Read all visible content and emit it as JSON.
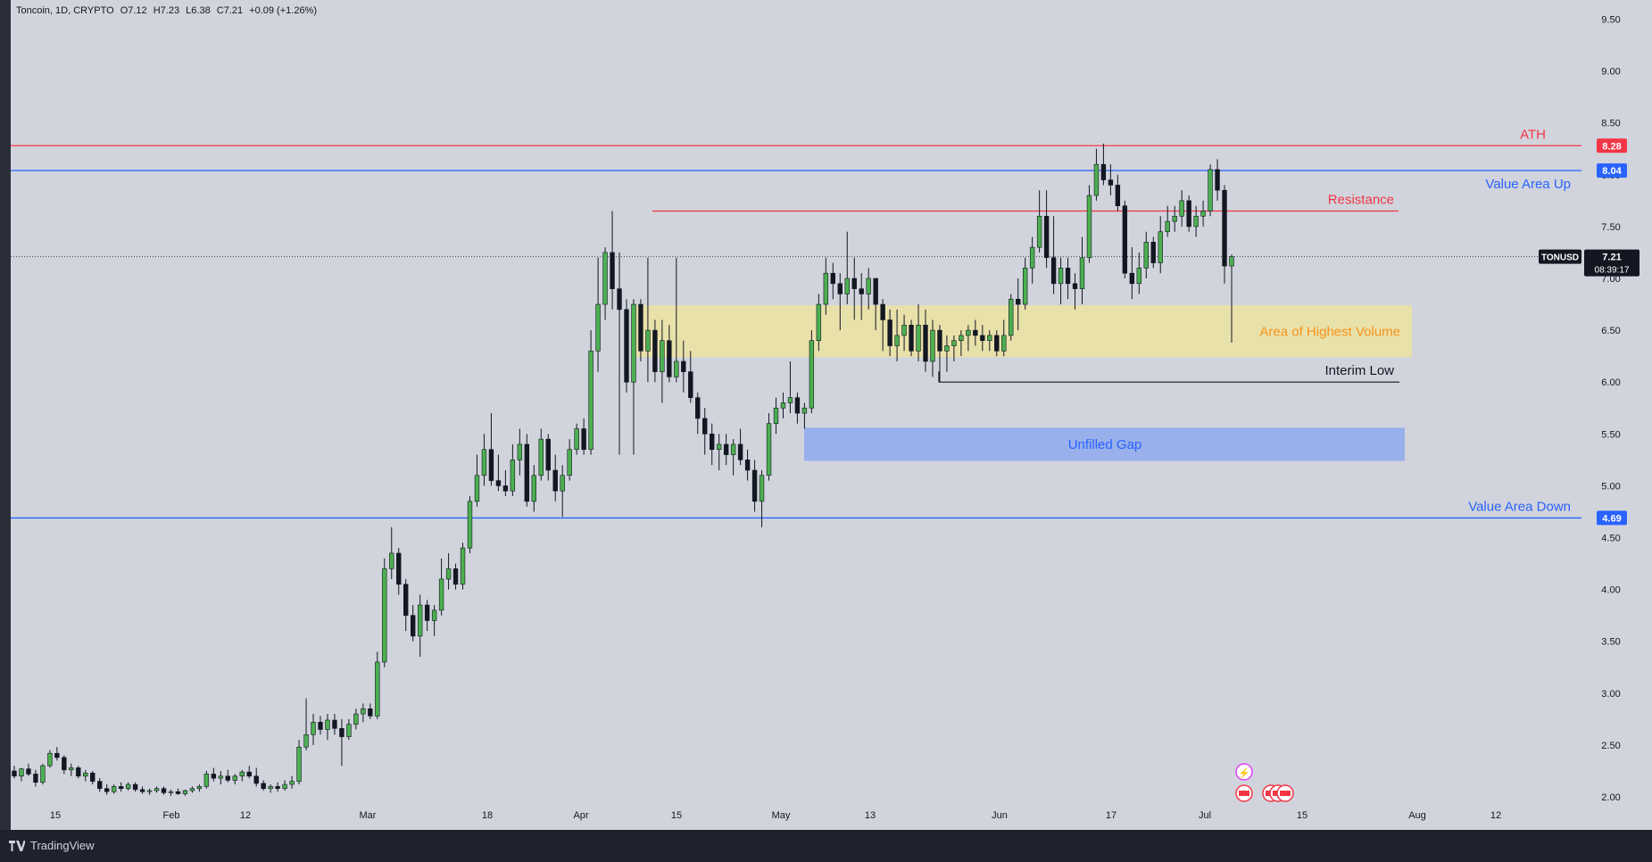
{
  "legend": {
    "symbol": "Toncoin, 1D, CRYPTO",
    "open": "O7.12",
    "high": "H7.23",
    "low": "L6.38",
    "close": "C7.21",
    "change": "+0.09 (+1.26%)"
  },
  "footer": {
    "brand": "TradingView"
  },
  "chart_data": {
    "type": "candlestick",
    "title": "Toncoin, 1D, CRYPTO",
    "xlabel": "",
    "ylabel": "",
    "ylim": [
      1.8,
      9.6
    ],
    "y_ticks": [
      "2.00",
      "2.50",
      "3.00",
      "3.50",
      "4.00",
      "4.50",
      "5.00",
      "5.50",
      "6.00",
      "6.50",
      "7.00",
      "7.50",
      "8.00",
      "8.50",
      "9.00",
      "9.50"
    ],
    "x_ticks": [
      "15",
      "Feb",
      "12",
      "Mar",
      "18",
      "Apr",
      "15",
      "May",
      "13",
      "Jun",
      "17",
      "Jul",
      "15",
      "Aug",
      "12"
    ],
    "ticker": "TONUSD",
    "last_price": "7.21",
    "countdown": "08:39:17",
    "levels": [
      {
        "label": "ATH",
        "value": 8.28,
        "tag": "8.28",
        "color": "#f23645"
      },
      {
        "label": "Value Area Up",
        "value": 8.04,
        "tag": "8.04",
        "color": "#2962ff"
      },
      {
        "label": "Value Area Down",
        "value": 4.69,
        "tag": "4.69",
        "color": "#2962ff"
      }
    ],
    "annotations": [
      {
        "label": "Resistance",
        "value": 7.65
      },
      {
        "label": "Area of Highest Volume",
        "from": 6.24,
        "to": 6.74
      },
      {
        "label": "Interim Low",
        "value": 6.0
      },
      {
        "label": "Unfilled Gap",
        "from": 5.24,
        "to": 5.56
      }
    ],
    "candles": [
      [
        2.25,
        2.3,
        2.18,
        2.2
      ],
      [
        2.2,
        2.28,
        2.15,
        2.27
      ],
      [
        2.27,
        2.32,
        2.2,
        2.22
      ],
      [
        2.22,
        2.26,
        2.1,
        2.14
      ],
      [
        2.14,
        2.32,
        2.12,
        2.3
      ],
      [
        2.3,
        2.45,
        2.28,
        2.42
      ],
      [
        2.42,
        2.48,
        2.35,
        2.38
      ],
      [
        2.38,
        2.4,
        2.22,
        2.26
      ],
      [
        2.26,
        2.32,
        2.2,
        2.28
      ],
      [
        2.28,
        2.3,
        2.18,
        2.2
      ],
      [
        2.2,
        2.26,
        2.15,
        2.23
      ],
      [
        2.23,
        2.25,
        2.12,
        2.15
      ],
      [
        2.15,
        2.18,
        2.05,
        2.08
      ],
      [
        2.08,
        2.12,
        2.02,
        2.05
      ],
      [
        2.05,
        2.12,
        2.03,
        2.1
      ],
      [
        2.1,
        2.14,
        2.05,
        2.08
      ],
      [
        2.08,
        2.14,
        2.06,
        2.12
      ],
      [
        2.12,
        2.14,
        2.05,
        2.07
      ],
      [
        2.07,
        2.1,
        2.03,
        2.05
      ],
      [
        2.05,
        2.08,
        2.02,
        2.06
      ],
      [
        2.06,
        2.1,
        2.04,
        2.08
      ],
      [
        2.08,
        2.1,
        2.02,
        2.04
      ],
      [
        2.04,
        2.07,
        2.01,
        2.05
      ],
      [
        2.05,
        2.08,
        2.02,
        2.03
      ],
      [
        2.03,
        2.07,
        2.01,
        2.06
      ],
      [
        2.06,
        2.1,
        2.04,
        2.08
      ],
      [
        2.08,
        2.12,
        2.05,
        2.1
      ],
      [
        2.1,
        2.25,
        2.08,
        2.22
      ],
      [
        2.22,
        2.28,
        2.15,
        2.18
      ],
      [
        2.18,
        2.25,
        2.12,
        2.2
      ],
      [
        2.2,
        2.26,
        2.14,
        2.16
      ],
      [
        2.16,
        2.22,
        2.12,
        2.2
      ],
      [
        2.2,
        2.26,
        2.15,
        2.24
      ],
      [
        2.24,
        2.3,
        2.18,
        2.2
      ],
      [
        2.2,
        2.28,
        2.1,
        2.13
      ],
      [
        2.13,
        2.16,
        2.06,
        2.08
      ],
      [
        2.08,
        2.12,
        2.04,
        2.1
      ],
      [
        2.1,
        2.14,
        2.05,
        2.08
      ],
      [
        2.08,
        2.16,
        2.06,
        2.12
      ],
      [
        2.12,
        2.2,
        2.08,
        2.15
      ],
      [
        2.15,
        2.55,
        2.12,
        2.48
      ],
      [
        2.48,
        2.95,
        2.45,
        2.6
      ],
      [
        2.6,
        2.8,
        2.5,
        2.72
      ],
      [
        2.72,
        2.78,
        2.6,
        2.65
      ],
      [
        2.65,
        2.8,
        2.55,
        2.74
      ],
      [
        2.74,
        2.8,
        2.6,
        2.66
      ],
      [
        2.66,
        2.75,
        2.3,
        2.58
      ],
      [
        2.58,
        2.75,
        2.55,
        2.7
      ],
      [
        2.7,
        2.85,
        2.65,
        2.8
      ],
      [
        2.8,
        2.9,
        2.72,
        2.85
      ],
      [
        2.85,
        2.9,
        2.75,
        2.78
      ],
      [
        2.78,
        3.4,
        2.75,
        3.3
      ],
      [
        3.3,
        4.3,
        3.25,
        4.2
      ],
      [
        4.2,
        4.6,
        4.1,
        4.35
      ],
      [
        4.35,
        4.4,
        3.95,
        4.05
      ],
      [
        4.05,
        4.1,
        3.6,
        3.75
      ],
      [
        3.75,
        3.85,
        3.5,
        3.55
      ],
      [
        3.55,
        3.95,
        3.35,
        3.85
      ],
      [
        3.85,
        3.9,
        3.6,
        3.7
      ],
      [
        3.7,
        3.85,
        3.55,
        3.8
      ],
      [
        3.8,
        4.3,
        3.75,
        4.1
      ],
      [
        4.1,
        4.35,
        4.0,
        4.2
      ],
      [
        4.2,
        4.25,
        4.0,
        4.05
      ],
      [
        4.05,
        4.45,
        4.0,
        4.4
      ],
      [
        4.4,
        4.9,
        4.35,
        4.85
      ],
      [
        4.85,
        5.3,
        4.8,
        5.1
      ],
      [
        5.1,
        5.5,
        5.0,
        5.35
      ],
      [
        5.35,
        5.7,
        5.0,
        5.05
      ],
      [
        5.05,
        5.3,
        4.95,
        5.0
      ],
      [
        5.0,
        5.15,
        4.9,
        4.95
      ],
      [
        4.95,
        5.4,
        4.9,
        5.25
      ],
      [
        5.25,
        5.55,
        5.1,
        5.4
      ],
      [
        5.4,
        5.5,
        4.8,
        4.85
      ],
      [
        4.85,
        5.2,
        4.75,
        5.1
      ],
      [
        5.1,
        5.55,
        5.05,
        5.45
      ],
      [
        5.45,
        5.5,
        5.05,
        5.15
      ],
      [
        5.15,
        5.3,
        4.85,
        4.95
      ],
      [
        4.95,
        5.2,
        4.7,
        5.1
      ],
      [
        5.1,
        5.45,
        5.05,
        5.35
      ],
      [
        5.35,
        5.6,
        5.3,
        5.55
      ],
      [
        5.55,
        5.65,
        5.3,
        5.35
      ],
      [
        5.35,
        6.5,
        5.3,
        6.3
      ],
      [
        6.3,
        7.2,
        6.1,
        6.75
      ],
      [
        6.75,
        7.3,
        6.6,
        7.25
      ],
      [
        7.25,
        7.65,
        6.7,
        6.9
      ],
      [
        6.9,
        7.25,
        5.3,
        6.7
      ],
      [
        6.7,
        6.8,
        5.9,
        6.0
      ],
      [
        6.0,
        6.8,
        5.3,
        6.75
      ],
      [
        6.75,
        6.8,
        6.2,
        6.3
      ],
      [
        6.3,
        7.2,
        6.0,
        6.5
      ],
      [
        6.5,
        6.6,
        6.0,
        6.1
      ],
      [
        6.1,
        6.6,
        5.8,
        6.4
      ],
      [
        6.4,
        6.55,
        6.0,
        6.05
      ],
      [
        6.05,
        7.2,
        6.0,
        6.2
      ],
      [
        6.2,
        6.4,
        5.9,
        6.1
      ],
      [
        6.1,
        6.3,
        5.8,
        5.85
      ],
      [
        5.85,
        5.9,
        5.5,
        5.65
      ],
      [
        5.65,
        5.75,
        5.3,
        5.5
      ],
      [
        5.5,
        5.6,
        5.2,
        5.35
      ],
      [
        5.35,
        5.5,
        5.15,
        5.4
      ],
      [
        5.4,
        5.5,
        5.2,
        5.3
      ],
      [
        5.3,
        5.45,
        5.1,
        5.4
      ],
      [
        5.4,
        5.55,
        5.2,
        5.25
      ],
      [
        5.25,
        5.35,
        5.05,
        5.15
      ],
      [
        5.15,
        5.25,
        4.75,
        4.85
      ],
      [
        4.85,
        5.15,
        4.6,
        5.1
      ],
      [
        5.1,
        5.7,
        5.05,
        5.6
      ],
      [
        5.6,
        5.85,
        5.5,
        5.75
      ],
      [
        5.75,
        5.9,
        5.65,
        5.8
      ],
      [
        5.8,
        6.2,
        5.7,
        5.85
      ],
      [
        5.85,
        5.9,
        5.6,
        5.7
      ],
      [
        5.7,
        5.8,
        5.55,
        5.75
      ],
      [
        5.75,
        6.5,
        5.7,
        6.4
      ],
      [
        6.4,
        6.85,
        6.3,
        6.75
      ],
      [
        6.75,
        7.2,
        6.65,
        7.05
      ],
      [
        7.05,
        7.15,
        6.8,
        6.95
      ],
      [
        6.95,
        7.05,
        6.5,
        6.85
      ],
      [
        6.85,
        7.45,
        6.75,
        7.0
      ],
      [
        7.0,
        7.2,
        6.6,
        6.9
      ],
      [
        6.9,
        7.05,
        6.6,
        6.85
      ],
      [
        6.85,
        7.1,
        6.7,
        7.0
      ],
      [
        7.0,
        7.0,
        6.5,
        6.75
      ],
      [
        6.75,
        6.8,
        6.3,
        6.6
      ],
      [
        6.6,
        6.7,
        6.25,
        6.35
      ],
      [
        6.35,
        6.7,
        6.2,
        6.45
      ],
      [
        6.45,
        6.65,
        6.3,
        6.55
      ],
      [
        6.55,
        6.6,
        6.25,
        6.3
      ],
      [
        6.3,
        6.75,
        6.2,
        6.55
      ],
      [
        6.55,
        6.7,
        6.1,
        6.2
      ],
      [
        6.2,
        6.6,
        6.05,
        6.5
      ],
      [
        6.5,
        6.55,
        6.0,
        6.3
      ],
      [
        6.3,
        6.45,
        6.1,
        6.35
      ],
      [
        6.35,
        6.45,
        6.2,
        6.4
      ],
      [
        6.4,
        6.5,
        6.25,
        6.45
      ],
      [
        6.45,
        6.55,
        6.3,
        6.5
      ],
      [
        6.5,
        6.6,
        6.35,
        6.45
      ],
      [
        6.45,
        6.55,
        6.3,
        6.4
      ],
      [
        6.4,
        6.5,
        6.3,
        6.45
      ],
      [
        6.45,
        6.5,
        6.25,
        6.3
      ],
      [
        6.3,
        6.6,
        6.25,
        6.45
      ],
      [
        6.45,
        6.85,
        6.4,
        6.8
      ],
      [
        6.8,
        7.0,
        6.5,
        6.75
      ],
      [
        6.75,
        7.2,
        6.7,
        7.1
      ],
      [
        7.1,
        7.4,
        6.95,
        7.3
      ],
      [
        7.3,
        7.85,
        7.25,
        7.6
      ],
      [
        7.6,
        7.85,
        7.1,
        7.2
      ],
      [
        7.2,
        7.6,
        6.85,
        6.95
      ],
      [
        6.95,
        7.2,
        6.75,
        7.1
      ],
      [
        7.1,
        7.2,
        6.8,
        6.95
      ],
      [
        6.95,
        7.05,
        6.7,
        6.9
      ],
      [
        6.9,
        7.4,
        6.75,
        7.2
      ],
      [
        7.2,
        7.9,
        7.15,
        7.8
      ],
      [
        7.8,
        8.25,
        7.75,
        8.1
      ],
      [
        8.1,
        8.3,
        7.9,
        7.95
      ],
      [
        7.95,
        8.1,
        7.8,
        7.9
      ],
      [
        7.9,
        8.0,
        7.65,
        7.7
      ],
      [
        7.7,
        7.75,
        7.0,
        7.05
      ],
      [
        7.05,
        7.3,
        6.8,
        6.95
      ],
      [
        6.95,
        7.25,
        6.85,
        7.1
      ],
      [
        7.1,
        7.45,
        7.0,
        7.35
      ],
      [
        7.35,
        7.4,
        7.1,
        7.15
      ],
      [
        7.15,
        7.6,
        7.05,
        7.45
      ],
      [
        7.45,
        7.7,
        7.4,
        7.55
      ],
      [
        7.55,
        7.7,
        7.45,
        7.6
      ],
      [
        7.6,
        7.85,
        7.5,
        7.75
      ],
      [
        7.75,
        7.8,
        7.45,
        7.5
      ],
      [
        7.5,
        7.7,
        7.4,
        7.6
      ],
      [
        7.6,
        7.75,
        7.5,
        7.65
      ],
      [
        7.65,
        8.1,
        7.6,
        8.05
      ],
      [
        8.05,
        8.15,
        7.75,
        7.85
      ],
      [
        7.85,
        7.9,
        6.95,
        7.12
      ],
      [
        7.12,
        7.23,
        6.38,
        7.21
      ]
    ]
  }
}
